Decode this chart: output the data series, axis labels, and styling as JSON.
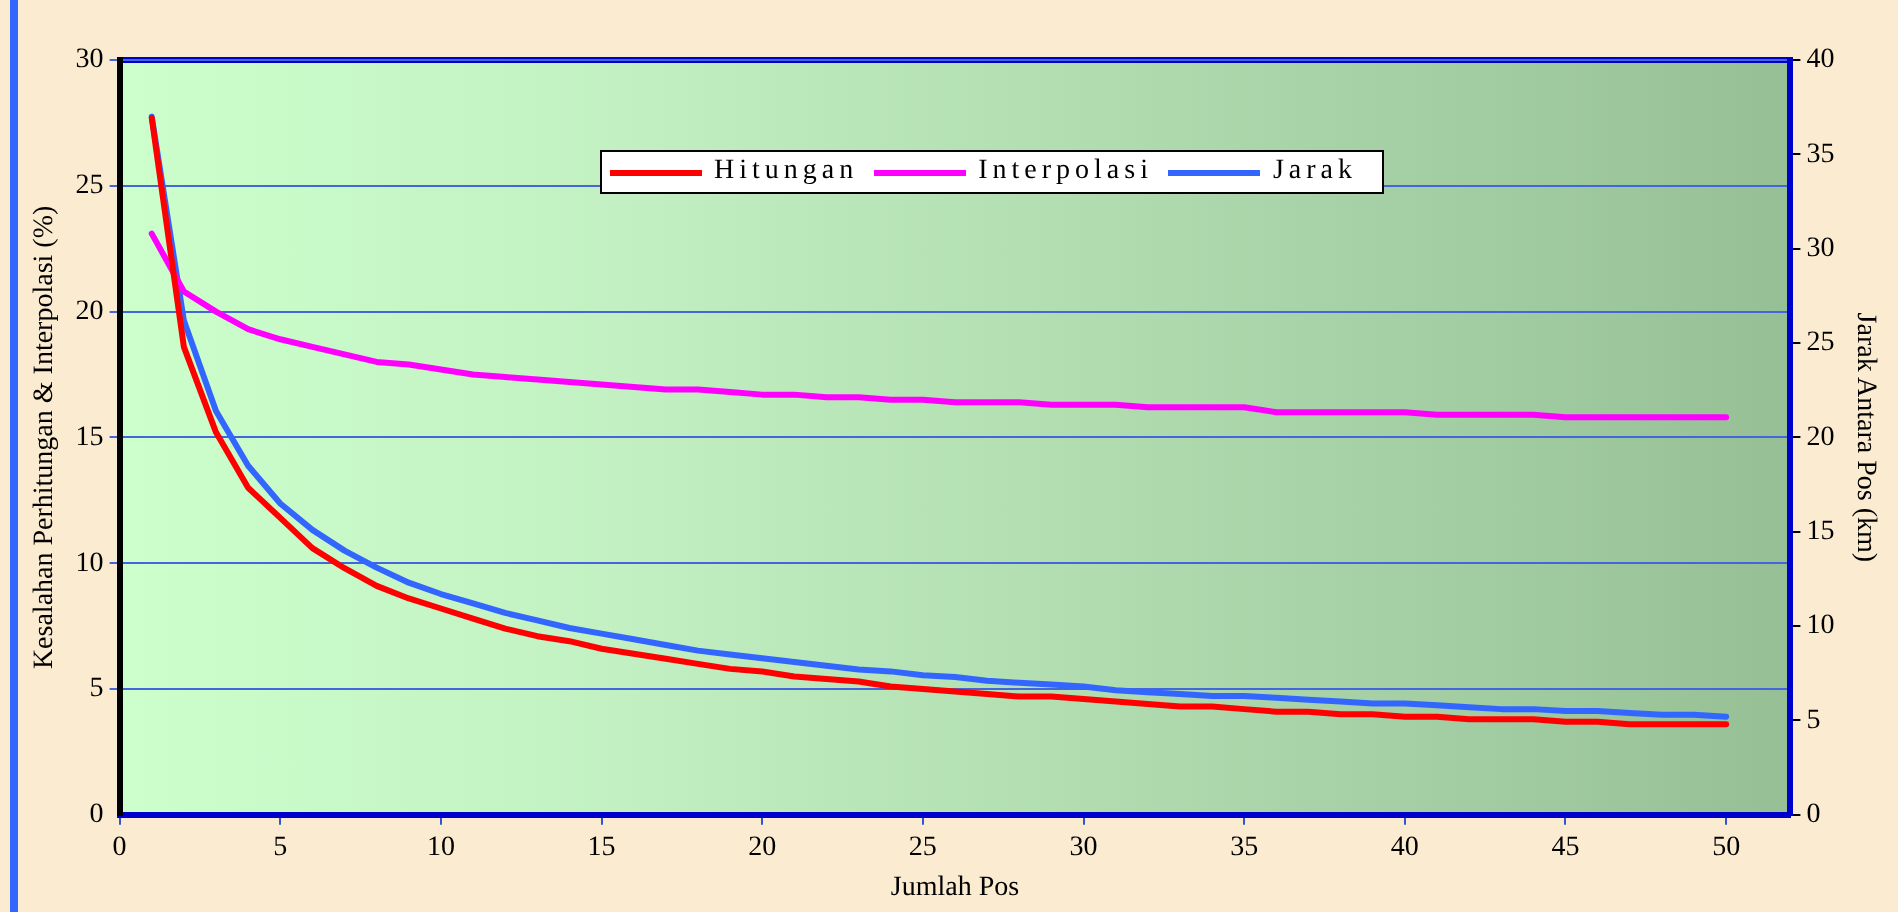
{
  "chart_data": {
    "type": "line",
    "xlabel": "Jumlah Pos",
    "ylabel": "Kesalahan Perhitungan & Interpolasi (%)",
    "y2label": "Jarak Antara Pos (km)",
    "x": [
      1,
      2,
      3,
      4,
      5,
      6,
      7,
      8,
      9,
      10,
      11,
      12,
      13,
      14,
      15,
      16,
      17,
      18,
      19,
      20,
      21,
      22,
      23,
      24,
      25,
      26,
      27,
      28,
      29,
      30,
      31,
      32,
      33,
      34,
      35,
      36,
      37,
      38,
      39,
      40,
      41,
      42,
      43,
      44,
      45,
      46,
      47,
      48,
      49,
      50
    ],
    "series": [
      {
        "name": "Hitungan",
        "color": "#ff0000",
        "values": [
          27.7,
          18.6,
          15.2,
          13.0,
          11.8,
          10.6,
          9.8,
          9.1,
          8.6,
          8.2,
          7.8,
          7.4,
          7.1,
          6.9,
          6.6,
          6.4,
          6.2,
          6.0,
          5.8,
          5.7,
          5.5,
          5.4,
          5.3,
          5.1,
          5.0,
          4.9,
          4.8,
          4.7,
          4.7,
          4.6,
          4.5,
          4.4,
          4.3,
          4.3,
          4.2,
          4.1,
          4.1,
          4.0,
          4.0,
          3.9,
          3.9,
          3.8,
          3.8,
          3.8,
          3.7,
          3.7,
          3.6,
          3.6,
          3.6,
          3.6
        ]
      },
      {
        "name": "Interpolasi",
        "color": "#ff00ff",
        "values": [
          23.1,
          20.8,
          20.0,
          19.3,
          18.9,
          18.6,
          18.3,
          18.0,
          17.9,
          17.7,
          17.5,
          17.4,
          17.3,
          17.2,
          17.1,
          17.0,
          16.9,
          16.9,
          16.8,
          16.7,
          16.7,
          16.6,
          16.6,
          16.5,
          16.5,
          16.4,
          16.4,
          16.4,
          16.3,
          16.3,
          16.3,
          16.2,
          16.2,
          16.2,
          16.2,
          16.0,
          16.0,
          16.0,
          16.0,
          16.0,
          15.9,
          15.9,
          15.9,
          15.9,
          15.8,
          15.8,
          15.8,
          15.8,
          15.8,
          15.8
        ]
      },
      {
        "name": "Jarak",
        "color": "#3366ff",
        "axis": "y2",
        "values": [
          37.0,
          26.2,
          21.4,
          18.5,
          16.5,
          15.1,
          14.0,
          13.1,
          12.3,
          11.7,
          11.2,
          10.7,
          10.3,
          9.9,
          9.6,
          9.3,
          9.0,
          8.7,
          8.5,
          8.3,
          8.1,
          7.9,
          7.7,
          7.6,
          7.4,
          7.3,
          7.1,
          7.0,
          6.9,
          6.8,
          6.6,
          6.5,
          6.4,
          6.3,
          6.3,
          6.2,
          6.1,
          6.0,
          5.9,
          5.9,
          5.8,
          5.7,
          5.6,
          5.6,
          5.5,
          5.5,
          5.4,
          5.3,
          5.3,
          5.2
        ]
      }
    ],
    "xlim": [
      0,
      52
    ],
    "xticks": [
      0,
      5,
      10,
      15,
      20,
      25,
      30,
      35,
      40,
      45,
      50
    ],
    "ylim": [
      0,
      30
    ],
    "yticks": [
      0,
      5,
      10,
      15,
      20,
      25,
      30
    ],
    "y2lim": [
      0,
      40
    ],
    "y2ticks": [
      0,
      5,
      10,
      15,
      20,
      25,
      30,
      35,
      40
    ],
    "grid": "y",
    "legend": "top",
    "marker": "none",
    "line_style": "solid"
  }
}
